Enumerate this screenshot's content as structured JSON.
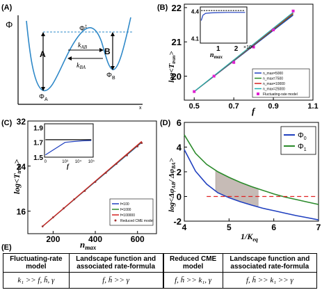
{
  "panels": {
    "a": {
      "tag": "(A)",
      "ylabel": "Φ",
      "xlabel": "x",
      "well_a": "A",
      "well_b": "B",
      "rate_ab": "k",
      "rate_ab_sub": "AB",
      "rate_ba": "k",
      "rate_ba_sub": "BA",
      "phi_a": "Φ",
      "phi_a_sub": "A",
      "phi_b": "Φ",
      "phi_b_sub": "B",
      "phi_top": "Φ",
      "phi_top_sup": "‡"
    },
    "b": {
      "tag": "(B)"
    },
    "c": {
      "tag": "(C)"
    },
    "d": {
      "tag": "(D)"
    },
    "e": {
      "tag": "(E)"
    }
  },
  "chart_data": [
    {
      "panel": "B",
      "type": "line",
      "xlabel": "f",
      "ylabel": "log<T_tran>",
      "xlim": [
        0.45,
        1.1
      ],
      "ylim": [
        19.3,
        22.1
      ],
      "xticks": [
        "0.5",
        "0.7",
        "0.9",
        "1.1"
      ],
      "yticks": [
        "20",
        "21",
        "22"
      ],
      "legend_position": "bottom-right",
      "series": [
        {
          "name": "n_max=5000",
          "color": "#1f3fbf",
          "x": [
            0.5,
            1.0
          ],
          "y": [
            19.55,
            21.78
          ]
        },
        {
          "name": "n_max=7500",
          "color": "#2a8a2a",
          "x": [
            0.5,
            1.0
          ],
          "y": [
            19.55,
            21.81
          ]
        },
        {
          "name": "n_max=10000",
          "color": "#d42020",
          "x": [
            0.5,
            1.0
          ],
          "y": [
            19.55,
            21.83
          ]
        },
        {
          "name": "n_max=25000",
          "color": "#22b0b0",
          "x": [
            0.5,
            1.0
          ],
          "y": [
            19.55,
            21.86
          ]
        }
      ],
      "markers": {
        "name": "Fluctuating-rate model",
        "color": "#e020d0",
        "x": [
          0.5,
          0.6,
          0.7,
          0.8,
          0.9,
          1.0
        ],
        "y": [
          19.55,
          20.0,
          20.4,
          20.85,
          21.35,
          21.9
        ]
      },
      "inset": {
        "xlabel": "n_max",
        "xscale_label": "×10⁴",
        "xlim": [
          0,
          2.6
        ],
        "ylim": [
          4.05,
          4.45
        ],
        "xticks": [
          "1",
          "2"
        ],
        "yticks": [
          "4.1",
          "4.4"
        ],
        "series": [
          {
            "color": "#1f3fbf",
            "x": [
              0.05,
              0.15,
              0.3,
              0.6,
              1.0,
              1.5,
              2.0,
              2.5
            ],
            "y": [
              4.3,
              4.36,
              4.38,
              4.385,
              4.388,
              4.39,
              4.39,
              4.39
            ]
          },
          {
            "color": "#000000",
            "dashed": true,
            "x": [
              0.05,
              2.5
            ],
            "y": [
              4.41,
              4.41
            ]
          }
        ]
      }
    },
    {
      "panel": "C",
      "type": "line",
      "xlabel": "n_max",
      "ylabel": "log<T_tran>",
      "xlim": [
        80,
        690
      ],
      "ylim": [
        12,
        32
      ],
      "xticks": [
        "200",
        "400",
        "600"
      ],
      "yticks": [
        "16",
        "24",
        "32"
      ],
      "legend_position": "bottom-right",
      "series": [
        {
          "name": "f=100",
          "color": "#1f3fbf",
          "x": [
            150,
            620
          ],
          "y": [
            13.3,
            28.2
          ]
        },
        {
          "name": "f=1000",
          "color": "#2a8a2a",
          "x": [
            150,
            620
          ],
          "y": [
            13.3,
            28.3
          ]
        },
        {
          "name": "f=100000",
          "color": "#d42020",
          "x": [
            150,
            620
          ],
          "y": [
            13.3,
            28.4
          ]
        }
      ],
      "markers": {
        "name": "Reduced CME model",
        "color": "#a03030",
        "x": [
          150,
          200,
          250,
          300,
          350,
          400,
          450,
          500,
          550,
          600,
          620
        ],
        "y": [
          13.3,
          14.9,
          16.5,
          18.1,
          19.6,
          21.2,
          22.8,
          24.4,
          25.9,
          27.5,
          28.1
        ]
      },
      "inset": {
        "xlabel": "f",
        "xscale": "log",
        "xlim": [
          0,
          5.2
        ],
        "ylim": [
          1.5,
          1.95
        ],
        "xticks": [
          "0",
          "10³",
          "10⁴",
          "10⁵"
        ],
        "yticks": [
          "1.5",
          "1.7",
          "1.9"
        ],
        "series": [
          {
            "color": "#1f3fbf",
            "x": [
              0.1,
              2.2,
              3.0,
              4.0,
              5.0
            ],
            "y": [
              1.53,
              1.7,
              1.71,
              1.72,
              1.725
            ]
          },
          {
            "color": "#000000",
            "x": [
              0.1,
              5.0
            ],
            "y": [
              1.735,
              1.735
            ]
          }
        ]
      }
    },
    {
      "panel": "D",
      "type": "line",
      "xlabel": "1/K_eq",
      "ylabel": "log<Δφ_AB/Δφ_BA>",
      "xlim": [
        4,
        7
      ],
      "ylim": [
        -2,
        6
      ],
      "xticks": [
        "4",
        "5",
        "6",
        "7"
      ],
      "yticks": [
        "-2",
        "0",
        "2",
        "4",
        "6"
      ],
      "legend_position": "top-right",
      "series": [
        {
          "name": "Φ_0",
          "color": "#1f3fbf",
          "x": [
            4,
            4.25,
            4.5,
            4.75,
            5,
            5.25,
            5.5,
            5.75,
            6,
            6.25,
            6.5,
            6.75,
            7
          ],
          "y": [
            3.8,
            2.05,
            1.0,
            0.3,
            -0.1,
            -0.42,
            -0.7,
            -0.95,
            -1.15,
            -1.35,
            -1.55,
            -1.72,
            -1.9
          ]
        },
        {
          "name": "Φ_1",
          "color": "#2a8a2a",
          "x": [
            4,
            4.25,
            4.5,
            4.75,
            5,
            5.25,
            5.5,
            5.75,
            6,
            6.25,
            6.5,
            6.75,
            7
          ],
          "y": [
            5.0,
            3.5,
            2.6,
            2.0,
            1.55,
            1.15,
            0.8,
            0.5,
            0.2,
            -0.05,
            -0.25,
            -0.45,
            -0.65
          ]
        },
        {
          "name": "zero line",
          "color": "#e02020",
          "dashed": true,
          "x": [
            4.5,
            7
          ],
          "y": [
            0,
            0
          ]
        }
      ],
      "shaded_region": {
        "x_from": 4.7,
        "x_to": 5.65,
        "between": [
          "Φ_0",
          "Φ_1"
        ],
        "color": "#b8aaa4"
      }
    }
  ],
  "table_e": {
    "header": [
      "Fluctuating-rate model",
      "Landscape function and associated rate-formula",
      "Reduced CME model",
      "Landscape function and associated rate-formula"
    ],
    "conditions": [
      "k₁ >> f, h̄, γ",
      "f, h̄ >> γ",
      "f, h̄ >> k₁, γ",
      "f, h̄ >> k₁ >> γ"
    ]
  }
}
